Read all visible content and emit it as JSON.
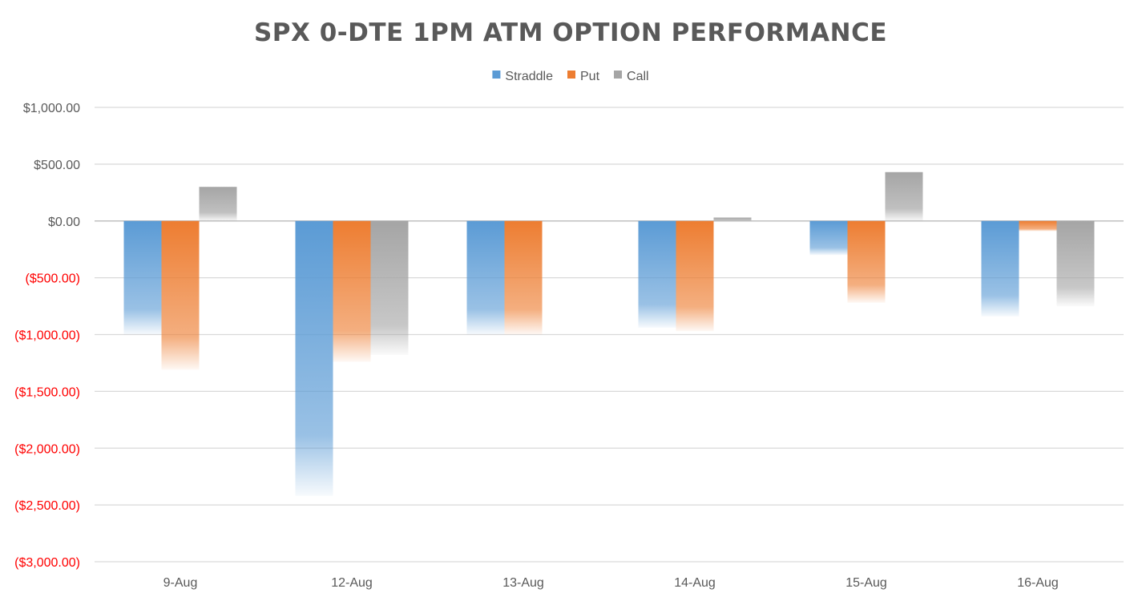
{
  "chart_data": {
    "type": "bar",
    "title": "SPX 0-DTE 1PM ATM OPTION PERFORMANCE",
    "xlabel": "",
    "ylabel": "",
    "categories": [
      "9-Aug",
      "12-Aug",
      "13-Aug",
      "14-Aug",
      "15-Aug",
      "16-Aug"
    ],
    "series": [
      {
        "name": "Straddle",
        "color": "#5B9BD5",
        "values": [
          -1000,
          -2420,
          -1000,
          -940,
          -300,
          -840
        ]
      },
      {
        "name": "Put",
        "color": "#ED7D31",
        "values": [
          -1310,
          -1240,
          -1000,
          -970,
          -720,
          -90
        ]
      },
      {
        "name": "Call",
        "color": "#A5A5A5",
        "values": [
          300,
          -1180,
          0,
          30,
          430,
          -750
        ]
      }
    ],
    "ylim": [
      -3000,
      1000
    ],
    "yticks": [
      1000,
      500,
      0,
      -500,
      -1000,
      -1500,
      -2000,
      -2500,
      -3000
    ],
    "ytick_labels": [
      "$1,000.00",
      "$500.00",
      "$0.00",
      "($500.00)",
      "($1,000.00)",
      "($1,500.00)",
      "($2,000.00)",
      "($2,500.00)",
      "($3,000.00)"
    ],
    "negative_label_color": "#FF0000",
    "positive_label_color": "#595959",
    "gridlines": true,
    "legend_position": "top-center",
    "bar_fill": "gradient-fade"
  }
}
